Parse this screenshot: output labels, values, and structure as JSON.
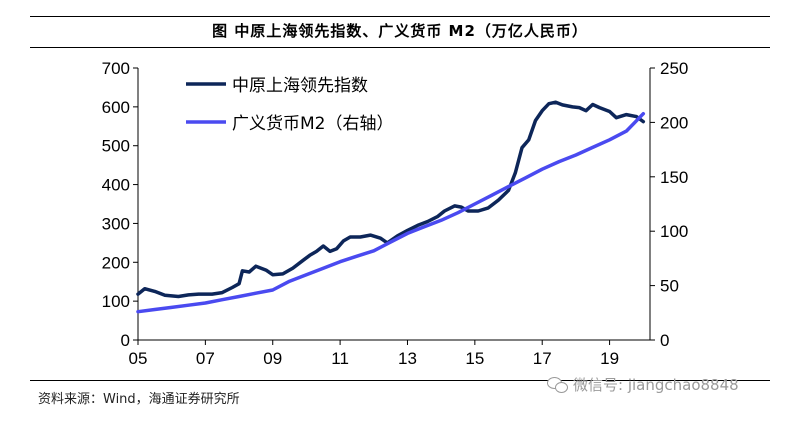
{
  "figure": {
    "title": "图  中原上海领先指数、广义货币 M2（万亿人民币）",
    "source": "资料来源：Wind，海通证券研究所",
    "watermark": "微信号: jiangchao8848"
  },
  "chart_data": {
    "type": "line",
    "xlabel": "",
    "ylabel_left": "",
    "ylabel_right": "",
    "xlim": [
      2005,
      2020.2
    ],
    "ylim_left": [
      0,
      700
    ],
    "ylim_right": [
      0,
      250
    ],
    "x_ticks": [
      2005,
      2007,
      2009,
      2011,
      2013,
      2015,
      2017,
      2019
    ],
    "x_tick_labels": [
      "05",
      "07",
      "09",
      "11",
      "13",
      "15",
      "17",
      "19"
    ],
    "y_ticks_left": [
      0,
      100,
      200,
      300,
      400,
      500,
      600,
      700
    ],
    "y_tick_labels_left": [
      "0",
      "100",
      "200",
      "300",
      "400",
      "500",
      "600",
      "700"
    ],
    "y_ticks_right": [
      0,
      50,
      100,
      150,
      200,
      250
    ],
    "y_tick_labels_right": [
      "0",
      "50",
      "100",
      "150",
      "200",
      "250"
    ],
    "grid": false,
    "legend_position": "top-left",
    "series": [
      {
        "name": "中原上海领先指数",
        "axis": "left",
        "color": "#0d2659",
        "points": [
          [
            2005.0,
            118
          ],
          [
            2005.2,
            132
          ],
          [
            2005.5,
            125
          ],
          [
            2005.8,
            115
          ],
          [
            2006.2,
            112
          ],
          [
            2006.5,
            116
          ],
          [
            2006.8,
            118
          ],
          [
            2007.2,
            118
          ],
          [
            2007.5,
            122
          ],
          [
            2007.8,
            135
          ],
          [
            2008.0,
            145
          ],
          [
            2008.1,
            178
          ],
          [
            2008.3,
            175
          ],
          [
            2008.5,
            190
          ],
          [
            2008.8,
            180
          ],
          [
            2009.0,
            168
          ],
          [
            2009.3,
            170
          ],
          [
            2009.6,
            185
          ],
          [
            2009.9,
            205
          ],
          [
            2010.1,
            218
          ],
          [
            2010.3,
            228
          ],
          [
            2010.5,
            242
          ],
          [
            2010.7,
            228
          ],
          [
            2010.9,
            235
          ],
          [
            2011.1,
            255
          ],
          [
            2011.3,
            265
          ],
          [
            2011.6,
            265
          ],
          [
            2011.9,
            270
          ],
          [
            2012.2,
            262
          ],
          [
            2012.4,
            250
          ],
          [
            2012.7,
            268
          ],
          [
            2013.0,
            282
          ],
          [
            2013.3,
            295
          ],
          [
            2013.6,
            305
          ],
          [
            2013.9,
            318
          ],
          [
            2014.1,
            332
          ],
          [
            2014.4,
            345
          ],
          [
            2014.6,
            342
          ],
          [
            2014.8,
            332
          ],
          [
            2015.1,
            332
          ],
          [
            2015.4,
            340
          ],
          [
            2015.7,
            360
          ],
          [
            2016.0,
            385
          ],
          [
            2016.2,
            430
          ],
          [
            2016.4,
            495
          ],
          [
            2016.6,
            515
          ],
          [
            2016.8,
            565
          ],
          [
            2017.0,
            590
          ],
          [
            2017.2,
            608
          ],
          [
            2017.4,
            612
          ],
          [
            2017.6,
            605
          ],
          [
            2017.9,
            600
          ],
          [
            2018.1,
            598
          ],
          [
            2018.3,
            590
          ],
          [
            2018.5,
            606
          ],
          [
            2018.7,
            598
          ],
          [
            2019.0,
            588
          ],
          [
            2019.2,
            572
          ],
          [
            2019.5,
            580
          ],
          [
            2019.8,
            575
          ],
          [
            2020.0,
            562
          ]
        ]
      },
      {
        "name": "广义货币M2（右轴）",
        "axis": "right",
        "color": "#4a4af0",
        "points": [
          [
            2005.0,
            26
          ],
          [
            2005.5,
            28
          ],
          [
            2006.0,
            30
          ],
          [
            2006.5,
            32
          ],
          [
            2007.0,
            34
          ],
          [
            2007.5,
            37
          ],
          [
            2008.0,
            40
          ],
          [
            2008.5,
            43
          ],
          [
            2009.0,
            46
          ],
          [
            2009.5,
            54
          ],
          [
            2010.0,
            60
          ],
          [
            2010.5,
            66
          ],
          [
            2011.0,
            72
          ],
          [
            2011.5,
            77
          ],
          [
            2012.0,
            82
          ],
          [
            2012.5,
            90
          ],
          [
            2013.0,
            98
          ],
          [
            2013.5,
            104
          ],
          [
            2014.0,
            110
          ],
          [
            2014.5,
            117
          ],
          [
            2015.0,
            125
          ],
          [
            2015.5,
            133
          ],
          [
            2016.0,
            141
          ],
          [
            2016.5,
            149
          ],
          [
            2017.0,
            157
          ],
          [
            2017.5,
            164
          ],
          [
            2018.0,
            170
          ],
          [
            2018.5,
            177
          ],
          [
            2019.0,
            184
          ],
          [
            2019.5,
            192
          ],
          [
            2020.0,
            208
          ]
        ]
      }
    ]
  }
}
